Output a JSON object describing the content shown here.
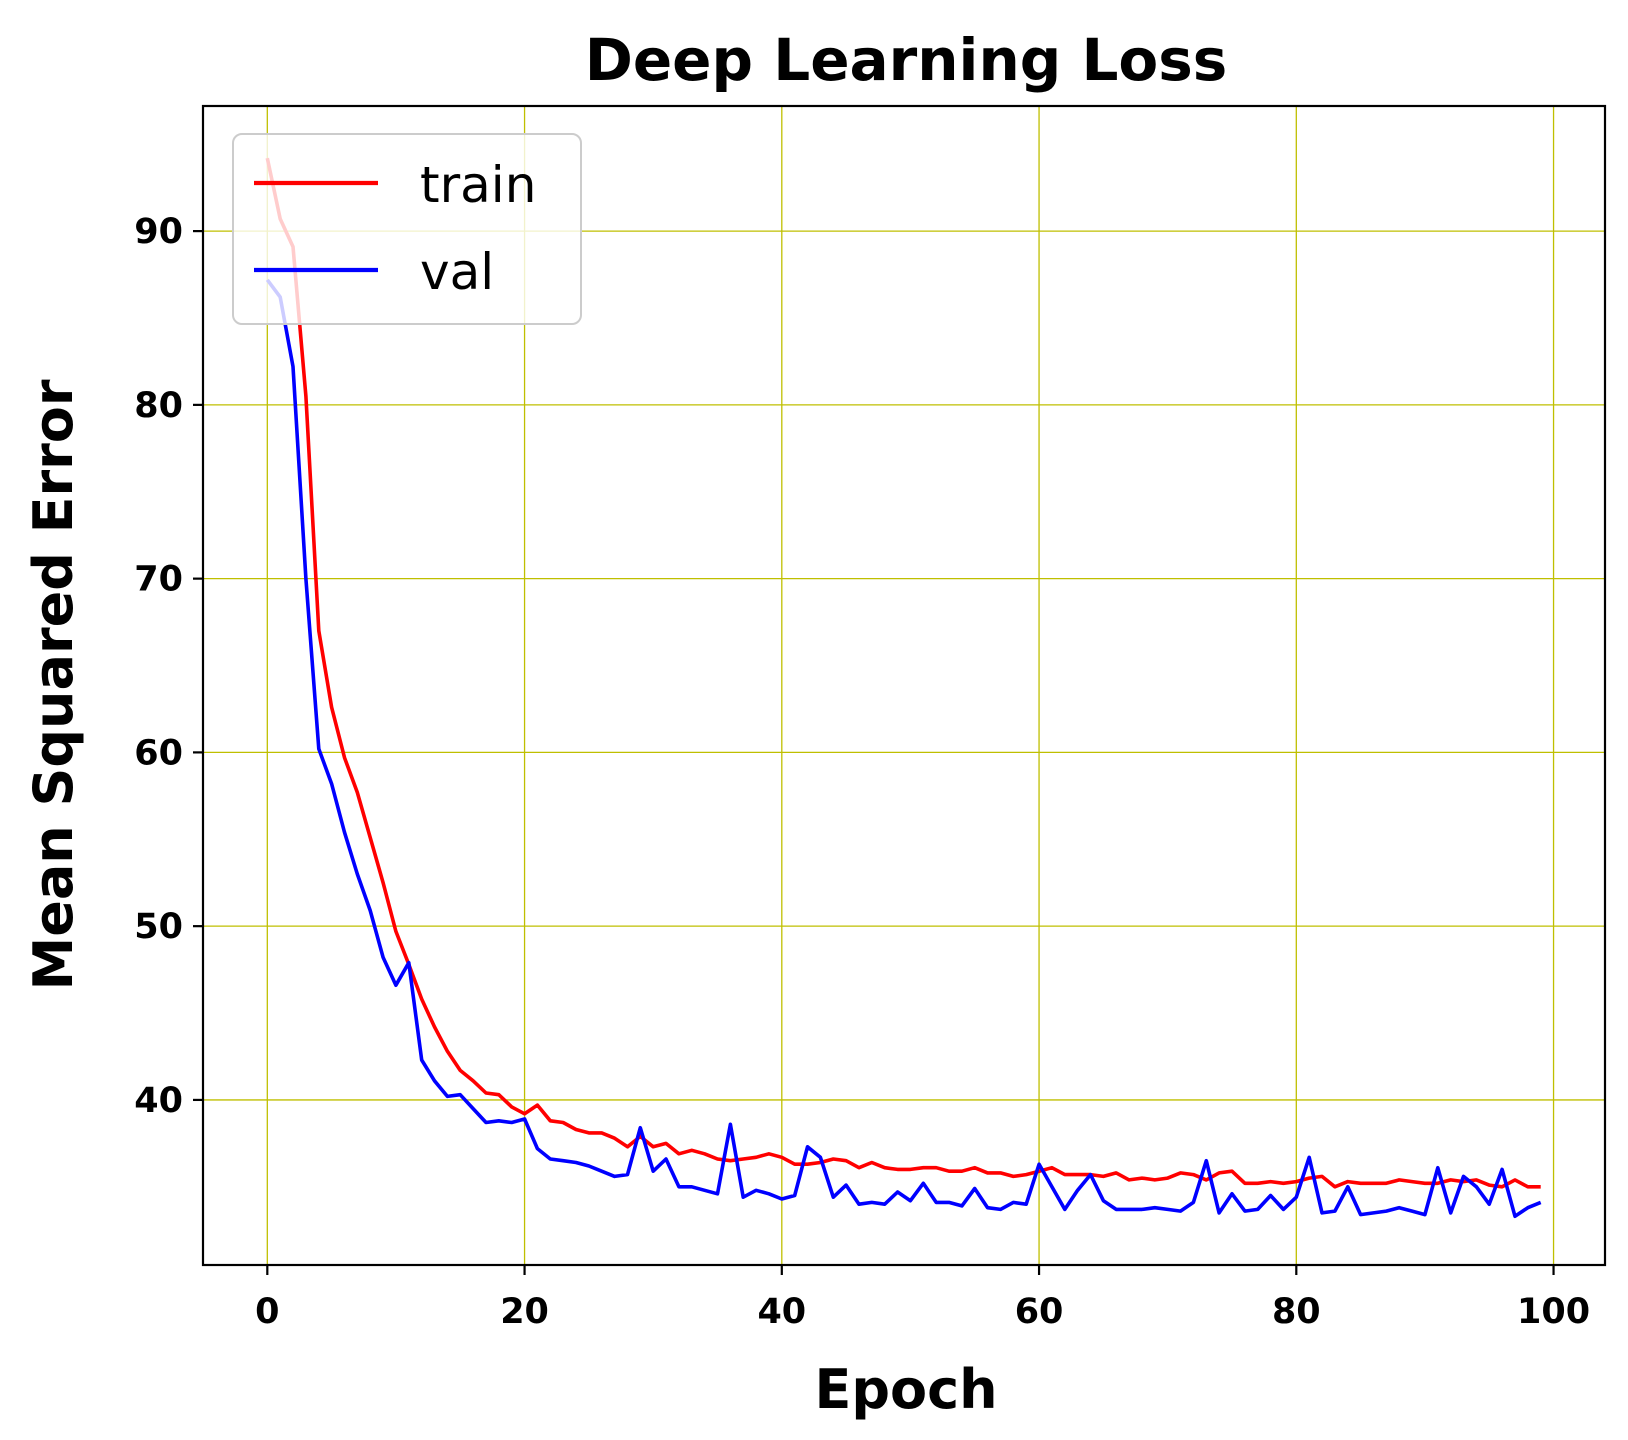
{
  "chart_data": {
    "type": "line",
    "title": "Deep Learning Loss",
    "xlabel": "Epoch",
    "ylabel": "Mean Squared Error",
    "xlim": [
      -5,
      104
    ],
    "ylim": [
      30.5,
      97.2
    ],
    "xticks": [
      0,
      20,
      40,
      60,
      80,
      100
    ],
    "yticks": [
      40,
      50,
      60,
      70,
      80,
      90
    ],
    "grid": true,
    "grid_color": "#bfbf00",
    "legend_position": "upper left",
    "x": [
      0,
      1,
      2,
      3,
      4,
      5,
      6,
      7,
      8,
      9,
      10,
      11,
      12,
      13,
      14,
      15,
      16,
      17,
      18,
      19,
      20,
      21,
      22,
      23,
      24,
      25,
      26,
      27,
      28,
      29,
      30,
      31,
      32,
      33,
      34,
      35,
      36,
      37,
      38,
      39,
      40,
      41,
      42,
      43,
      44,
      45,
      46,
      47,
      48,
      49,
      50,
      51,
      52,
      53,
      54,
      55,
      56,
      57,
      58,
      59,
      60,
      61,
      62,
      63,
      64,
      65,
      66,
      67,
      68,
      69,
      70,
      71,
      72,
      73,
      74,
      75,
      76,
      77,
      78,
      79,
      80,
      81,
      82,
      83,
      84,
      85,
      86,
      87,
      88,
      89,
      90,
      91,
      92,
      93,
      94,
      95,
      96,
      97,
      98,
      99
    ],
    "series": [
      {
        "name": "train",
        "color": "#ff0000",
        "values": [
          94.2,
          90.7,
          89.1,
          80.5,
          67.0,
          62.6,
          59.7,
          57.7,
          55.1,
          52.5,
          49.7,
          47.8,
          45.8,
          44.2,
          42.8,
          41.7,
          41.1,
          40.4,
          40.3,
          39.6,
          39.2,
          39.7,
          38.8,
          38.7,
          38.3,
          38.1,
          38.1,
          37.8,
          37.3,
          37.9,
          37.3,
          37.5,
          36.9,
          37.1,
          36.9,
          36.6,
          36.5,
          36.6,
          36.7,
          36.9,
          36.7,
          36.3,
          36.3,
          36.4,
          36.6,
          36.5,
          36.1,
          36.4,
          36.1,
          36.0,
          36.0,
          36.1,
          36.1,
          35.9,
          35.9,
          36.1,
          35.8,
          35.8,
          35.6,
          35.7,
          35.9,
          36.1,
          35.7,
          35.7,
          35.7,
          35.6,
          35.8,
          35.4,
          35.5,
          35.4,
          35.5,
          35.8,
          35.7,
          35.4,
          35.8,
          35.9,
          35.2,
          35.2,
          35.3,
          35.2,
          35.3,
          35.5,
          35.6,
          35.0,
          35.3,
          35.2,
          35.2,
          35.2,
          35.4,
          35.3,
          35.2,
          35.2,
          35.4,
          35.3,
          35.4,
          35.1,
          35.0,
          35.4,
          35.0,
          35.0
        ]
      },
      {
        "name": "val",
        "color": "#0000ff",
        "values": [
          87.2,
          86.2,
          82.2,
          70.0,
          60.2,
          58.2,
          55.4,
          53.0,
          50.9,
          48.2,
          46.6,
          47.9,
          42.3,
          41.1,
          40.2,
          40.3,
          39.5,
          38.7,
          38.8,
          38.7,
          38.9,
          37.2,
          36.6,
          36.5,
          36.4,
          36.2,
          35.9,
          35.6,
          35.7,
          38.4,
          35.9,
          36.6,
          35.0,
          35.0,
          34.8,
          34.6,
          38.6,
          34.4,
          34.8,
          34.6,
          34.3,
          34.5,
          37.3,
          36.7,
          34.4,
          35.1,
          34.0,
          34.1,
          34.0,
          34.7,
          34.2,
          35.2,
          34.1,
          34.1,
          33.9,
          34.9,
          33.8,
          33.7,
          34.1,
          34.0,
          36.3,
          35.0,
          33.7,
          34.8,
          35.7,
          34.2,
          33.7,
          33.7,
          33.7,
          33.8,
          33.7,
          33.6,
          34.1,
          36.5,
          33.5,
          34.6,
          33.6,
          33.7,
          34.5,
          33.7,
          34.4,
          36.7,
          33.5,
          33.6,
          35.0,
          33.4,
          33.5,
          33.6,
          33.8,
          33.6,
          33.4,
          36.1,
          33.5,
          35.6,
          35.0,
          34.0,
          36.0,
          33.3,
          33.8,
          34.1
        ]
      }
    ]
  }
}
